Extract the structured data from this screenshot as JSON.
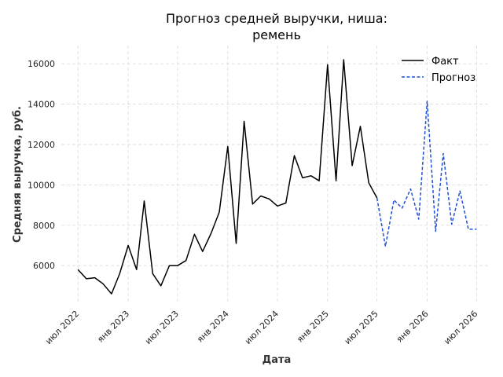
{
  "chart_data": {
    "type": "line",
    "title": "Прогноз средней выручки, ниша:\nремень",
    "xlabel": "Дата",
    "ylabel": "Средняя выручка, руб.",
    "ylim": [
      4100,
      16900
    ],
    "xlim": [
      "2022-05-01",
      "2026-08-15"
    ],
    "grid": true,
    "legend": "top-right",
    "yticks": [
      6000,
      8000,
      10000,
      12000,
      14000,
      16000
    ],
    "xticks": [
      {
        "date": "2022-07-01",
        "label": "июл 2022"
      },
      {
        "date": "2023-01-01",
        "label": "янв 2023"
      },
      {
        "date": "2023-07-01",
        "label": "июл 2023"
      },
      {
        "date": "2024-01-01",
        "label": "янв 2024"
      },
      {
        "date": "2024-07-01",
        "label": "июл 2024"
      },
      {
        "date": "2025-01-01",
        "label": "янв 2025"
      },
      {
        "date": "2025-07-01",
        "label": "июл 2025"
      },
      {
        "date": "2026-01-01",
        "label": "янв 2026"
      },
      {
        "date": "2026-07-01",
        "label": "июл 2026"
      }
    ],
    "series": [
      {
        "name": "Факт",
        "color": "#000000",
        "style": "solid",
        "x": [
          "2022-07-01",
          "2022-08-01",
          "2022-09-01",
          "2022-10-01",
          "2022-11-01",
          "2022-12-01",
          "2023-01-01",
          "2023-02-01",
          "2023-03-01",
          "2023-04-01",
          "2023-05-01",
          "2023-06-01",
          "2023-07-01",
          "2023-08-01",
          "2023-09-01",
          "2023-10-01",
          "2023-11-01",
          "2023-12-01",
          "2024-01-01",
          "2024-02-01",
          "2024-03-01",
          "2024-04-01",
          "2024-05-01",
          "2024-06-01",
          "2024-07-01",
          "2024-08-01",
          "2024-09-01",
          "2024-10-01",
          "2024-11-01",
          "2024-12-01",
          "2025-01-01",
          "2025-02-01",
          "2025-03-01",
          "2025-04-01",
          "2025-05-01",
          "2025-06-01",
          "2025-07-01"
        ],
        "values": [
          5800,
          5350,
          5400,
          5100,
          4600,
          5600,
          7000,
          5800,
          9200,
          5600,
          5000,
          6000,
          6000,
          6250,
          7550,
          6700,
          7600,
          8650,
          11900,
          7100,
          13150,
          9050,
          9450,
          9300,
          8950,
          9100,
          11450,
          10350,
          10450,
          10200,
          15950,
          10200,
          16200,
          10950,
          12900,
          10100,
          9350
        ]
      },
      {
        "name": "Прогноз",
        "color": "#1f4fd6",
        "style": "dashed",
        "x": [
          "2025-07-01",
          "2025-08-01",
          "2025-09-01",
          "2025-10-01",
          "2025-11-01",
          "2025-12-01",
          "2026-01-01",
          "2026-02-01",
          "2026-03-01",
          "2026-04-01",
          "2026-05-01",
          "2026-06-01",
          "2026-07-01"
        ],
        "values": [
          9350,
          6950,
          9250,
          8850,
          9800,
          8300,
          14150,
          7700,
          11550,
          8050,
          9700,
          7800,
          7800
        ]
      }
    ]
  }
}
